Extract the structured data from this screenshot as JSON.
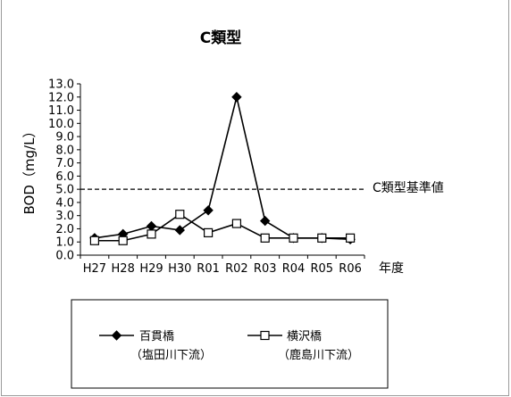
{
  "chart_data": {
    "type": "line",
    "title": "C類型",
    "ylabel": "BOD（mg/L）",
    "xlabel": "年度",
    "categories": [
      "H27",
      "H28",
      "H29",
      "H30",
      "R01",
      "R02",
      "R03",
      "R04",
      "R05",
      "R06"
    ],
    "ylim": [
      0.0,
      13.0
    ],
    "yticks": [
      "0.0",
      "1.0",
      "2.0",
      "3.0",
      "4.0",
      "5.0",
      "6.0",
      "7.0",
      "8.0",
      "9.0",
      "10.0",
      "11.0",
      "12.0",
      "13.0"
    ],
    "series": [
      {
        "name": "百貫橋",
        "name_sub": "（塩田川下流）",
        "marker": "filled-diamond",
        "color": "#000000",
        "values": [
          1.3,
          1.6,
          2.2,
          1.9,
          3.4,
          12.0,
          2.6,
          1.3,
          1.3,
          1.2
        ]
      },
      {
        "name": "横沢橋",
        "name_sub": "（鹿島川下流）",
        "marker": "open-square",
        "color": "#000000",
        "values": [
          1.1,
          1.1,
          1.6,
          3.1,
          1.7,
          2.4,
          1.3,
          1.3,
          1.3,
          1.3
        ]
      }
    ],
    "reference_line": {
      "label": "C類型基準値",
      "value": 5.0,
      "style": "dashed"
    },
    "grid": false,
    "legend_position": "bottom"
  }
}
